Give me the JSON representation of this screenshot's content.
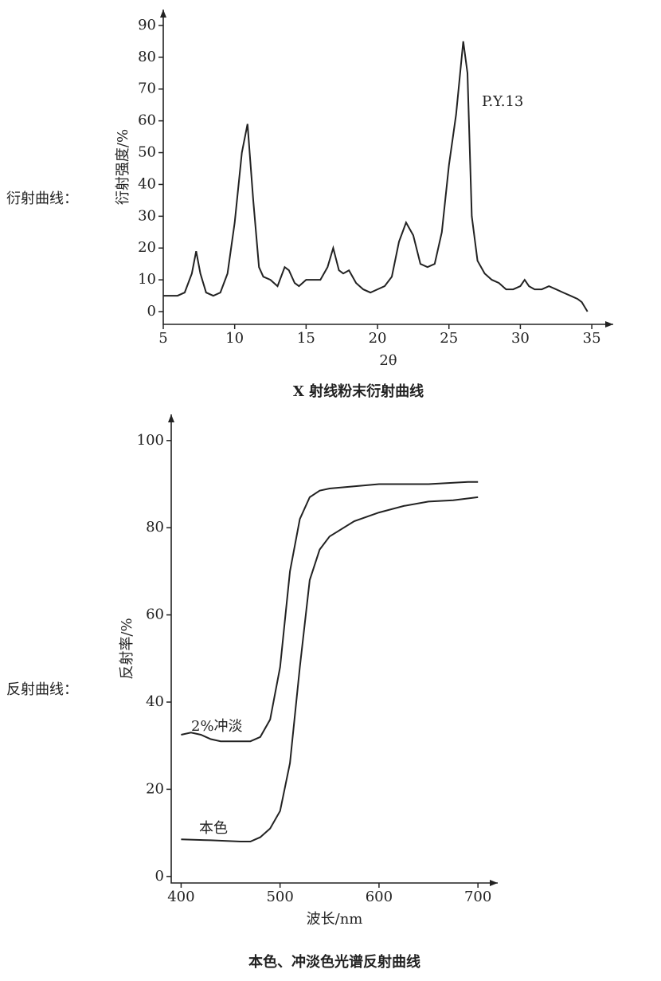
{
  "side_labels": [
    "衍射曲线：",
    "反射曲线："
  ],
  "chart_data": [
    {
      "type": "line",
      "xlabel": "2θ",
      "ylabel": "衍射强度/%",
      "annotation": "P.Y.13",
      "caption": "X 射线粉末衍射曲线",
      "xlim": [
        5,
        36.5
      ],
      "ylim": [
        -4,
        95
      ],
      "xticks": [
        5,
        10,
        15,
        20,
        25,
        30,
        35
      ],
      "yticks": [
        0,
        10,
        20,
        30,
        40,
        50,
        60,
        70,
        80,
        90
      ],
      "series": [
        {
          "color": "#222222",
          "x": [
            5,
            6,
            6.5,
            7,
            7.3,
            7.6,
            8,
            8.5,
            9,
            9.5,
            10,
            10.5,
            10.9,
            11.3,
            11.7,
            12,
            12.5,
            13,
            13.5,
            13.8,
            14.2,
            14.5,
            15,
            15.5,
            16,
            16.5,
            16.9,
            17.3,
            17.6,
            18,
            18.5,
            19,
            19.5,
            20,
            20.5,
            21,
            21.5,
            22,
            22.5,
            23,
            23.5,
            24,
            24.5,
            25,
            25.5,
            26,
            26.3,
            26.6,
            27,
            27.5,
            28,
            28.5,
            29,
            29.5,
            30,
            30.3,
            30.6,
            31,
            31.5,
            32,
            32.5,
            33,
            33.5,
            34,
            34.3,
            34.7
          ],
          "values": [
            5,
            5,
            6,
            12,
            19,
            12,
            6,
            5,
            6,
            12,
            28,
            50,
            59,
            35,
            14,
            11,
            10,
            8,
            14,
            13,
            9,
            8,
            10,
            10,
            10,
            14,
            20,
            13,
            12,
            13,
            9,
            7,
            6,
            7,
            8,
            11,
            22,
            28,
            24,
            15,
            14,
            15,
            25,
            46,
            62,
            85,
            75,
            30,
            16,
            12,
            10,
            9,
            7,
            7,
            8,
            10,
            8,
            7,
            7,
            8,
            7,
            6,
            5,
            4,
            3,
            0
          ]
        }
      ]
    },
    {
      "type": "line",
      "xlabel": "波长/nm",
      "ylabel": "反射率/%",
      "caption": "本色、冲淡色光谱反射曲线",
      "xlim": [
        390,
        720
      ],
      "ylim": [
        -1.5,
        106
      ],
      "xticks": [
        400,
        500,
        600,
        700
      ],
      "yticks": [
        0,
        20,
        40,
        60,
        80,
        100
      ],
      "series": [
        {
          "name": "2%冲淡",
          "color": "#222222",
          "x": [
            400,
            410,
            420,
            430,
            440,
            450,
            460,
            470,
            480,
            490,
            500,
            510,
            520,
            530,
            540,
            550,
            575,
            600,
            650,
            690,
            700
          ],
          "values": [
            32.5,
            33,
            32.5,
            31.5,
            31,
            31,
            31,
            31,
            32,
            36,
            48,
            70,
            82,
            87,
            88.5,
            89,
            89.5,
            90,
            90,
            90.5,
            90.5
          ]
        },
        {
          "name": "本色",
          "color": "#222222",
          "x": [
            400,
            430,
            460,
            470,
            480,
            490,
            500,
            510,
            520,
            530,
            540,
            550,
            575,
            600,
            625,
            650,
            675,
            700
          ],
          "values": [
            8.5,
            8.3,
            8,
            8,
            9,
            11,
            15,
            26,
            48,
            68,
            75,
            78,
            81.5,
            83.5,
            85,
            86,
            86.3,
            87
          ]
        }
      ]
    }
  ]
}
